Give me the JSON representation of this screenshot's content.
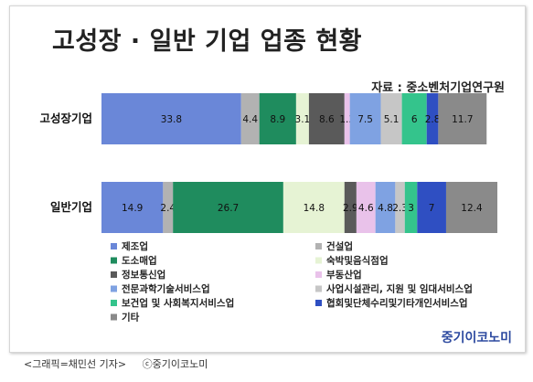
{
  "caption": {
    "graphic_credit": "<그래픽=채민선 기자>",
    "copyright": "ⓒ중기이코노미"
  },
  "brand": "중기이코노미",
  "chart_data": {
    "type": "bar",
    "orientation": "horizontal",
    "stacked": true,
    "title": "고성장 · 일반 기업 업종 현황",
    "source": "자료 : 중소벤처기업연구원",
    "xlim": [
      0,
      100
    ],
    "grid": false,
    "legend_position": "bottom",
    "categories": [
      "고성장기업",
      "일반기업"
    ],
    "series": [
      {
        "name": "제조업",
        "color": "#6a87d8",
        "values": [
          33.8,
          14.9
        ],
        "labels": [
          "33.8",
          "14.9"
        ]
      },
      {
        "name": "건설업",
        "color": "#b2b2b2",
        "values": [
          4.4,
          2.4
        ],
        "labels": [
          "4.4",
          "2.4"
        ]
      },
      {
        "name": "도소매업",
        "color": "#1f8c5e",
        "values": [
          8.9,
          26.7
        ],
        "labels": [
          "8.9",
          "26.7"
        ]
      },
      {
        "name": "숙박및음식점업",
        "color": "#e6f3d4",
        "values": [
          3.1,
          14.8
        ],
        "labels": [
          "3.1",
          "14.8"
        ]
      },
      {
        "name": "정보통신업",
        "color": "#5a5a5a",
        "values": [
          8.6,
          2.9
        ],
        "labels": [
          "8.6",
          "2.9"
        ]
      },
      {
        "name": "부동산업",
        "color": "#e9c2ea",
        "values": [
          1.3,
          4.6
        ],
        "labels": [
          "1.3",
          "4.6"
        ]
      },
      {
        "name": "전문과학기술서비스업",
        "color": "#7fa2e2",
        "values": [
          7.5,
          4.8
        ],
        "labels": [
          "7.5",
          "4.8"
        ]
      },
      {
        "name": "사업시설관리, 지원 및 임대서비스업",
        "color": "#c6c6c6",
        "values": [
          5.1,
          2.3
        ],
        "labels": [
          "5.1",
          "2.3"
        ]
      },
      {
        "name": "보건업 및 사회복지서비스업",
        "color": "#34c48c",
        "values": [
          6,
          3
        ],
        "labels": [
          "6",
          "3"
        ]
      },
      {
        "name": "협회및단체수리및기타개인서비스업",
        "color": "#2f4fc2",
        "values": [
          2.8,
          7
        ],
        "labels": [
          "2.8",
          "7"
        ]
      },
      {
        "name": "기타",
        "color": "#8a8a8a",
        "values": [
          11.7,
          12.4
        ],
        "labels": [
          "11.7",
          "12.4"
        ]
      }
    ]
  }
}
